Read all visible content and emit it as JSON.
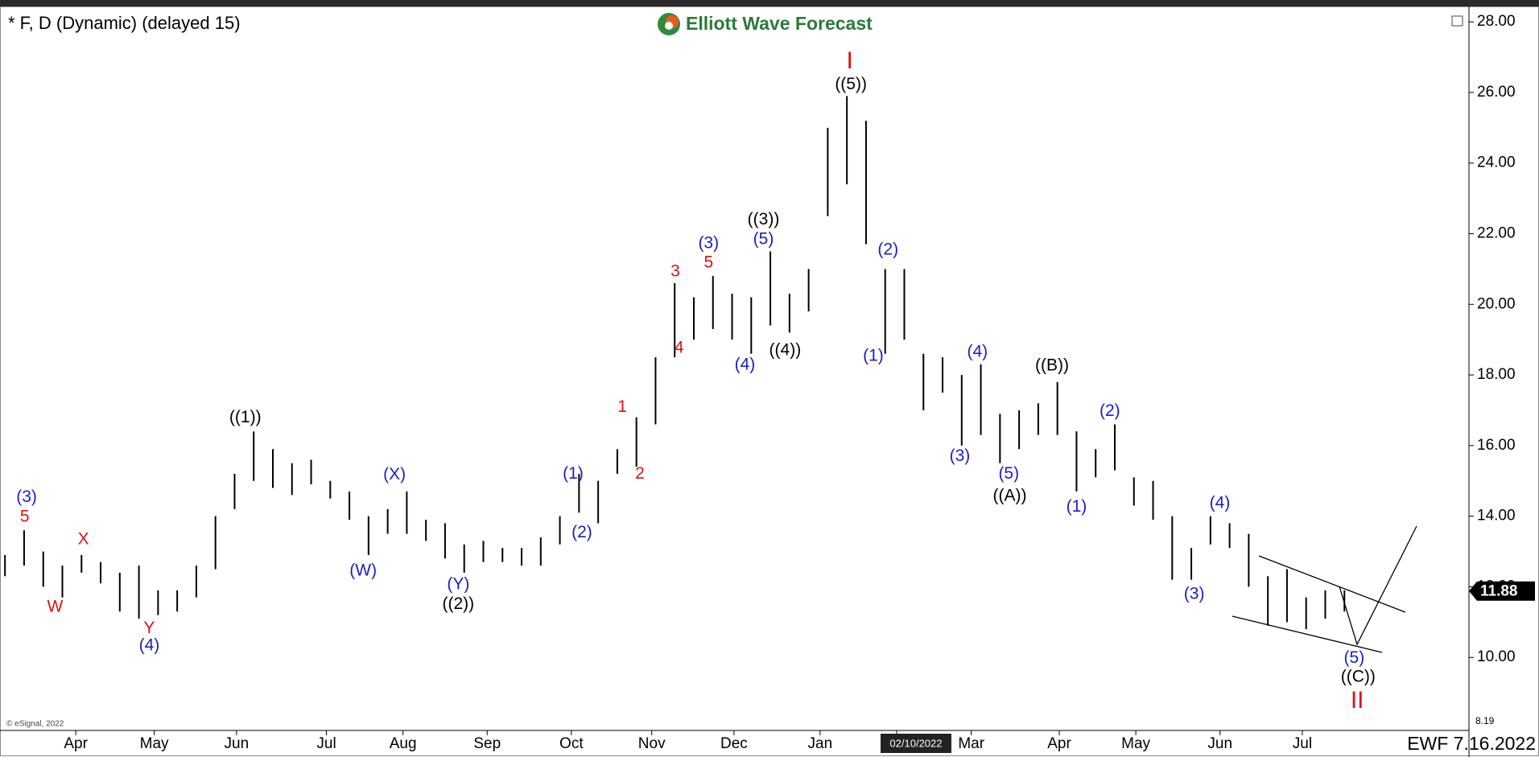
{
  "chart_data": {
    "type": "ohlc",
    "title": "* F, D (Dynamic) (delayed 15)",
    "brand": "Elliott Wave Forecast",
    "footer": "EWF 7.16.2022",
    "copyright": "© eSignal, 2022",
    "cursor_date": "02/10/2022",
    "last_price": 11.88,
    "low_marker": 8.19,
    "color": "#000000",
    "high": [
      12.9,
      13.6,
      13.0,
      12.6,
      12.9,
      12.7,
      12.4,
      12.6,
      11.9,
      11.9,
      12.6,
      14.0,
      15.2,
      16.4,
      15.9,
      15.5,
      15.6,
      15.0,
      14.7,
      14.0,
      14.2,
      14.7,
      13.9,
      13.8,
      13.2,
      13.3,
      13.1,
      13.1,
      13.4,
      14.0,
      15.2,
      15.0,
      15.9,
      16.8,
      18.5,
      20.6,
      20.2,
      20.8,
      20.3,
      20.2,
      21.5,
      20.3,
      21.0,
      25.0,
      25.9,
      25.2,
      21.0,
      21.0,
      18.6,
      18.5,
      18.0,
      18.3,
      16.9,
      17.0,
      17.2,
      17.8,
      16.4,
      15.9,
      16.6,
      15.1,
      15.0,
      14.0,
      13.1,
      14.0,
      13.8,
      13.5,
      12.3,
      12.5,
      11.7,
      11.9,
      11.9
    ],
    "low": [
      12.3,
      12.6,
      12.0,
      11.7,
      12.4,
      12.1,
      11.3,
      11.1,
      11.2,
      11.3,
      11.7,
      12.5,
      14.2,
      15.0,
      14.8,
      14.6,
      14.9,
      14.5,
      13.9,
      12.9,
      13.5,
      13.5,
      13.3,
      12.8,
      12.4,
      12.7,
      12.7,
      12.6,
      12.6,
      13.2,
      14.1,
      13.8,
      15.2,
      15.4,
      16.6,
      18.5,
      19.0,
      19.3,
      19.0,
      18.6,
      19.4,
      19.2,
      19.8,
      22.5,
      23.4,
      21.7,
      18.6,
      19.0,
      17.0,
      17.5,
      16.0,
      16.3,
      15.5,
      15.9,
      16.3,
      16.3,
      14.7,
      15.1,
      15.3,
      14.3,
      13.9,
      12.2,
      12.2,
      13.2,
      13.1,
      12.0,
      10.9,
      11.0,
      10.8,
      11.1,
      11.3
    ],
    "xlim": [
      -0.26,
      76.51
    ],
    "xticks": [
      {
        "value": 3.7,
        "label": "Apr"
      },
      {
        "value": 7.8,
        "label": "May"
      },
      {
        "value": 12.1,
        "label": "Jun"
      },
      {
        "value": 16.8,
        "label": "Jul"
      },
      {
        "value": 20.8,
        "label": "Aug"
      },
      {
        "value": 25.2,
        "label": "Sep"
      },
      {
        "value": 29.6,
        "label": "Oct"
      },
      {
        "value": 33.8,
        "label": "Nov"
      },
      {
        "value": 38.1,
        "label": "Dec"
      },
      {
        "value": 42.6,
        "label": "Jan"
      },
      {
        "value": 46.6,
        "label": "Feb"
      },
      {
        "value": 50.5,
        "label": "Mar"
      },
      {
        "value": 55.1,
        "label": "Apr"
      },
      {
        "value": 59.1,
        "label": "May"
      },
      {
        "value": 63.5,
        "label": "Jun"
      },
      {
        "value": 67.8,
        "label": "Jul"
      }
    ],
    "ylim": [
      8,
      28.3
    ],
    "yticks": [
      {
        "value": 10,
        "label": "10.00"
      },
      {
        "value": 12,
        "label": "12.00"
      },
      {
        "value": 14,
        "label": "14.00"
      },
      {
        "value": 16,
        "label": "16.00"
      },
      {
        "value": 18,
        "label": "18.00"
      },
      {
        "value": 20,
        "label": "20.00"
      },
      {
        "value": 22,
        "label": "22.00"
      },
      {
        "value": 24,
        "label": "24.00"
      },
      {
        "value": 26,
        "label": "26.00"
      },
      {
        "value": 28,
        "label": "28.00"
      }
    ],
    "annotations": [
      {
        "text": "(3)",
        "color": "#1c1cc8",
        "x": 1.13,
        "y": 14.53
      },
      {
        "text": "5",
        "color": "#e01010",
        "x": 1.03,
        "y": 13.97
      },
      {
        "text": "W",
        "color": "#e01010",
        "x": 2.62,
        "y": 11.42
      },
      {
        "text": "X",
        "color": "#e01010",
        "x": 4.1,
        "y": 13.33
      },
      {
        "text": "Y",
        "color": "#e01010",
        "x": 7.54,
        "y": 10.81
      },
      {
        "text": "(4)",
        "color": "#1c1cc8",
        "x": 7.54,
        "y": 10.33
      },
      {
        "text": "((1))",
        "color": "#000000",
        "x": 12.56,
        "y": 16.78
      },
      {
        "text": "(W)",
        "color": "#1c1cc8",
        "x": 18.72,
        "y": 12.44
      },
      {
        "text": "(X)",
        "color": "#1c1cc8",
        "x": 20.36,
        "y": 15.17
      },
      {
        "text": "(Y)",
        "color": "#1c1cc8",
        "x": 23.69,
        "y": 12.06
      },
      {
        "text": "((2))",
        "color": "#000000",
        "x": 23.69,
        "y": 11.5
      },
      {
        "text": "(1)",
        "color": "#1c1cc8",
        "x": 29.69,
        "y": 15.19
      },
      {
        "text": "(2)",
        "color": "#1c1cc8",
        "x": 30.15,
        "y": 13.53
      },
      {
        "text": "1",
        "color": "#e01010",
        "x": 32.26,
        "y": 17.08
      },
      {
        "text": "2",
        "color": "#e01010",
        "x": 33.18,
        "y": 15.19
      },
      {
        "text": "3",
        "color": "#e01010",
        "x": 35.03,
        "y": 20.92
      },
      {
        "text": "4",
        "color": "#e01010",
        "x": 35.23,
        "y": 18.75
      },
      {
        "text": "(3)",
        "color": "#1c1cc8",
        "x": 36.77,
        "y": 21.72
      },
      {
        "text": "5",
        "color": "#e01010",
        "x": 36.77,
        "y": 21.17
      },
      {
        "text": "(4)",
        "color": "#1c1cc8",
        "x": 38.67,
        "y": 18.28
      },
      {
        "text": "((3))",
        "color": "#000000",
        "x": 39.64,
        "y": 22.39
      },
      {
        "text": "(5)",
        "color": "#1c1cc8",
        "x": 39.64,
        "y": 21.83
      },
      {
        "text": "((4))",
        "color": "#000000",
        "x": 40.77,
        "y": 18.69
      },
      {
        "text": "I",
        "color": "#e01010",
        "x": 44.15,
        "y": 26.86
      },
      {
        "text": "((5))",
        "color": "#000000",
        "x": 44.21,
        "y": 26.22
      },
      {
        "text": "(2)",
        "color": "#1c1cc8",
        "x": 46.15,
        "y": 21.53
      },
      {
        "text": "(1)",
        "color": "#1c1cc8",
        "x": 45.38,
        "y": 18.53
      },
      {
        "text": "(4)",
        "color": "#1c1cc8",
        "x": 50.82,
        "y": 18.64
      },
      {
        "text": "(3)",
        "color": "#1c1cc8",
        "x": 49.9,
        "y": 15.69
      },
      {
        "text": "(5)",
        "color": "#1c1cc8",
        "x": 52.46,
        "y": 15.19
      },
      {
        "text": "((A))",
        "color": "#000000",
        "x": 52.51,
        "y": 14.56
      },
      {
        "text": "((B))",
        "color": "#000000",
        "x": 54.72,
        "y": 18.25
      },
      {
        "text": "(2)",
        "color": "#1c1cc8",
        "x": 57.74,
        "y": 16.97
      },
      {
        "text": "(1)",
        "color": "#1c1cc8",
        "x": 56.0,
        "y": 14.25
      },
      {
        "text": "(4)",
        "color": "#1c1cc8",
        "x": 63.49,
        "y": 14.36
      },
      {
        "text": "(3)",
        "color": "#1c1cc8",
        "x": 62.15,
        "y": 11.78
      },
      {
        "text": "(5)",
        "color": "#1c1cc8",
        "x": 70.51,
        "y": 9.97
      },
      {
        "text": "((C))",
        "color": "#000000",
        "x": 70.72,
        "y": 9.44
      },
      {
        "text": "II",
        "color": "#e01010",
        "x": 70.67,
        "y": 8.75
      }
    ]
  }
}
